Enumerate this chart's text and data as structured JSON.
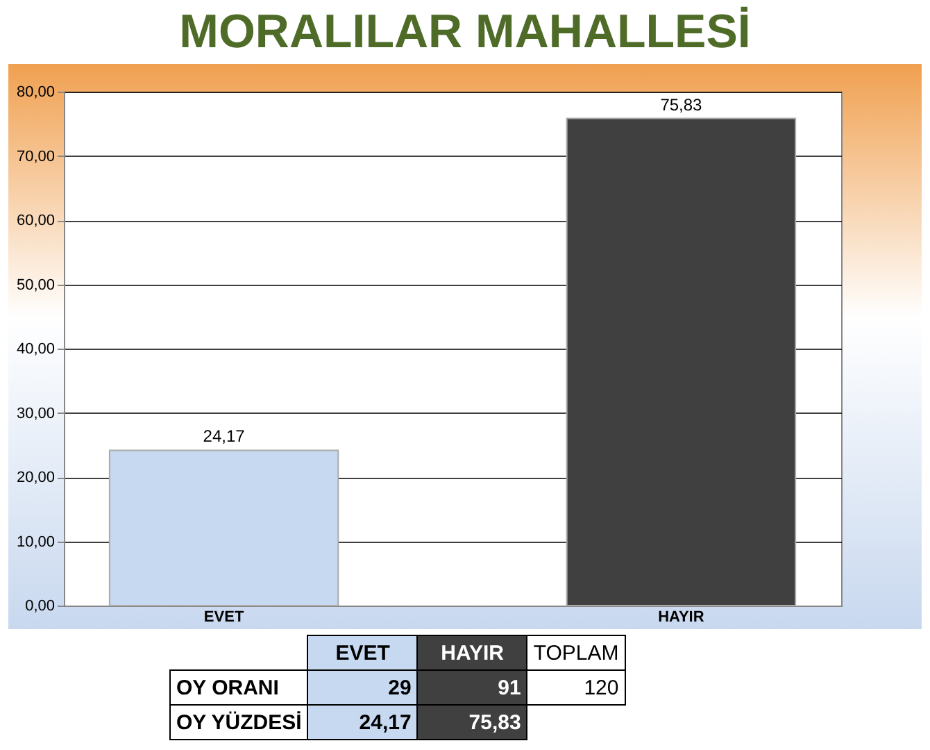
{
  "chart_data": {
    "type": "bar",
    "title": "MORALILAR MAHALLESİ",
    "categories": [
      "EVET",
      "HAYIR"
    ],
    "values": [
      24.17,
      75.83
    ],
    "colors": [
      "#c6d9f0",
      "#404040"
    ],
    "value_labels": [
      "24,17",
      "75,83"
    ],
    "ylim": [
      0,
      80
    ],
    "yticks": [
      {
        "value": 0,
        "label": "0,00"
      },
      {
        "value": 10,
        "label": "10,00"
      },
      {
        "value": 20,
        "label": "20,00"
      },
      {
        "value": 30,
        "label": "30,00"
      },
      {
        "value": 40,
        "label": "40,00"
      },
      {
        "value": 50,
        "label": "50,00"
      },
      {
        "value": 60,
        "label": "60,00"
      },
      {
        "value": 70,
        "label": "70,00"
      },
      {
        "value": 80,
        "label": "80,00"
      }
    ],
    "grid": "y",
    "annotations": [
      "TOPLAM",
      "OY ORANI",
      "29",
      "91",
      "120",
      "OY YÜZDESİ"
    ]
  }
}
